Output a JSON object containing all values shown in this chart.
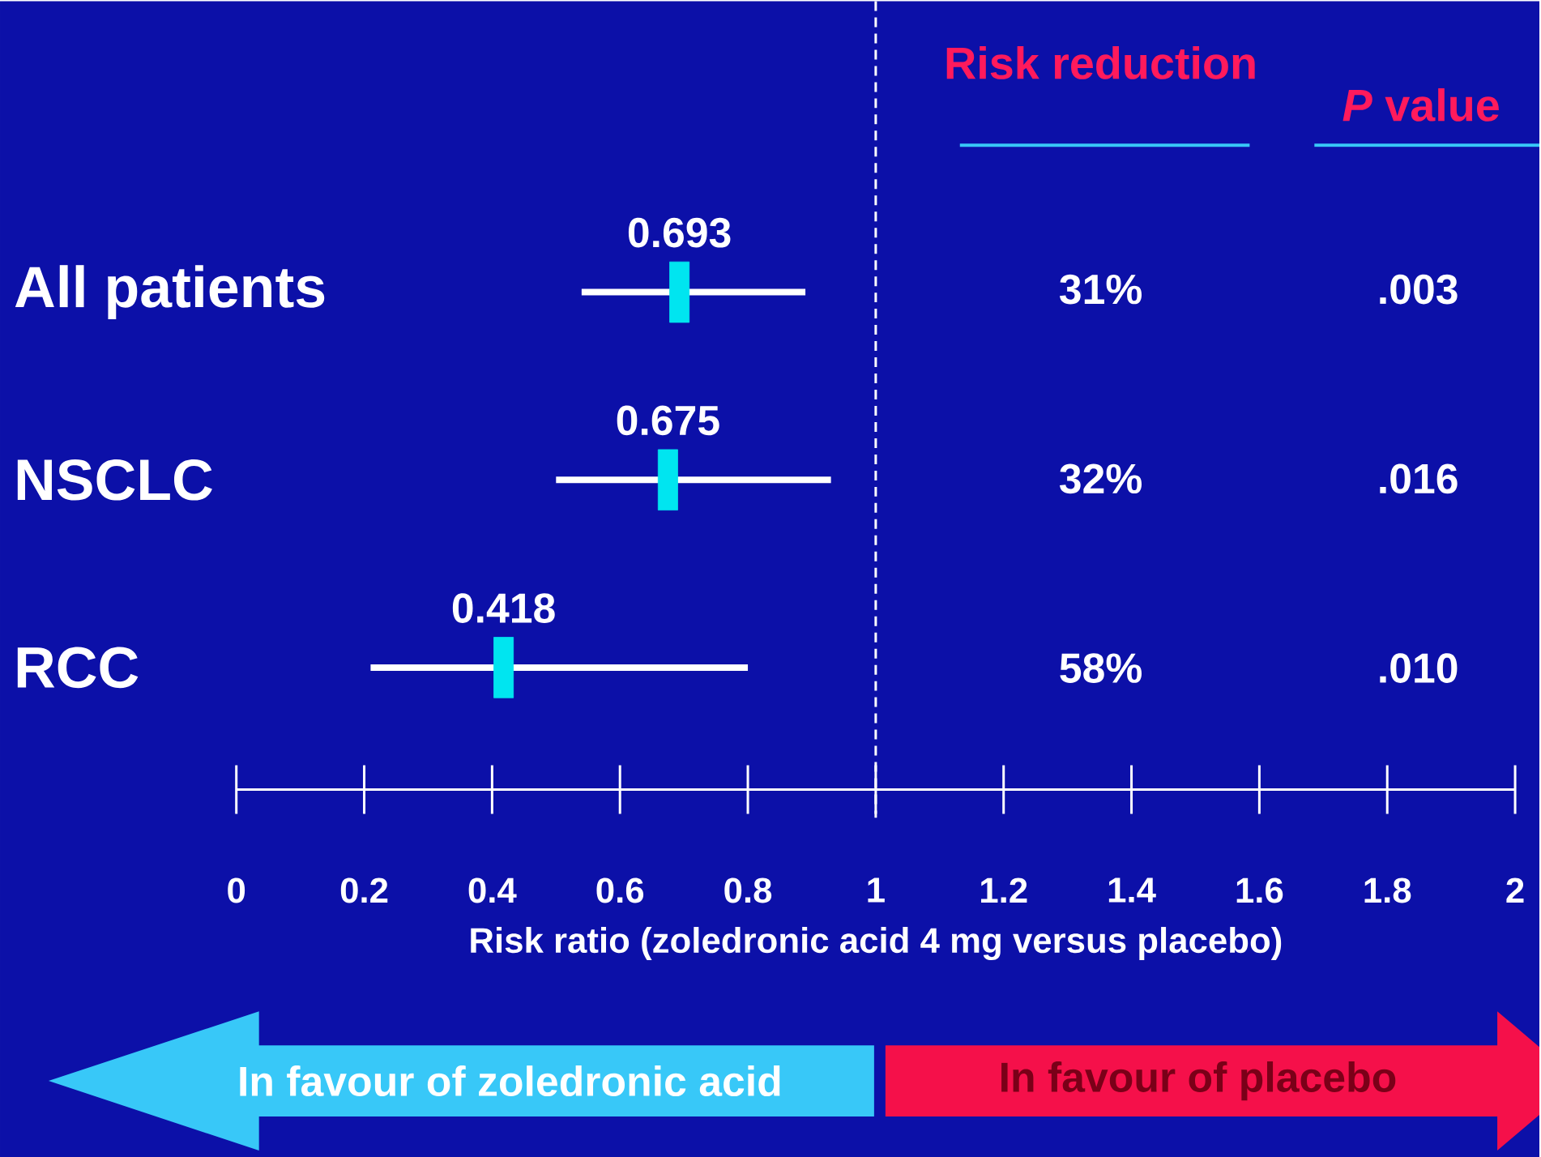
{
  "chart_data": {
    "type": "scatter",
    "orientation": "horizontal",
    "categories": [
      "All patients",
      "NSCLC",
      "RCC"
    ],
    "values": [
      0.693,
      0.675,
      0.418
    ],
    "errors": [
      [
        0.54,
        0.89
      ],
      [
        0.5,
        0.93
      ],
      [
        0.21,
        0.8
      ]
    ],
    "color": "#00e5f0",
    "marker": "square",
    "data_labels": true,
    "xlim": [
      0,
      2
    ],
    "xticks": [
      0,
      0.2,
      0.4,
      0.6,
      0.8,
      1,
      1.2,
      1.4,
      1.6,
      1.8,
      2
    ],
    "xlabel": "Risk ratio (zoledronic acid 4 mg versus placebo)",
    "ref_lines": [
      {
        "axis": "x",
        "value": 1,
        "color": "#ffffff",
        "line_style": "dashed"
      }
    ],
    "grid": false,
    "annotations": [
      "Risk reduction",
      "*P* value",
      "31%",
      ".003",
      "32%",
      ".016",
      "58%",
      ".010",
      "In favour of zoledronic acid",
      "In favour of placebo"
    ]
  }
}
